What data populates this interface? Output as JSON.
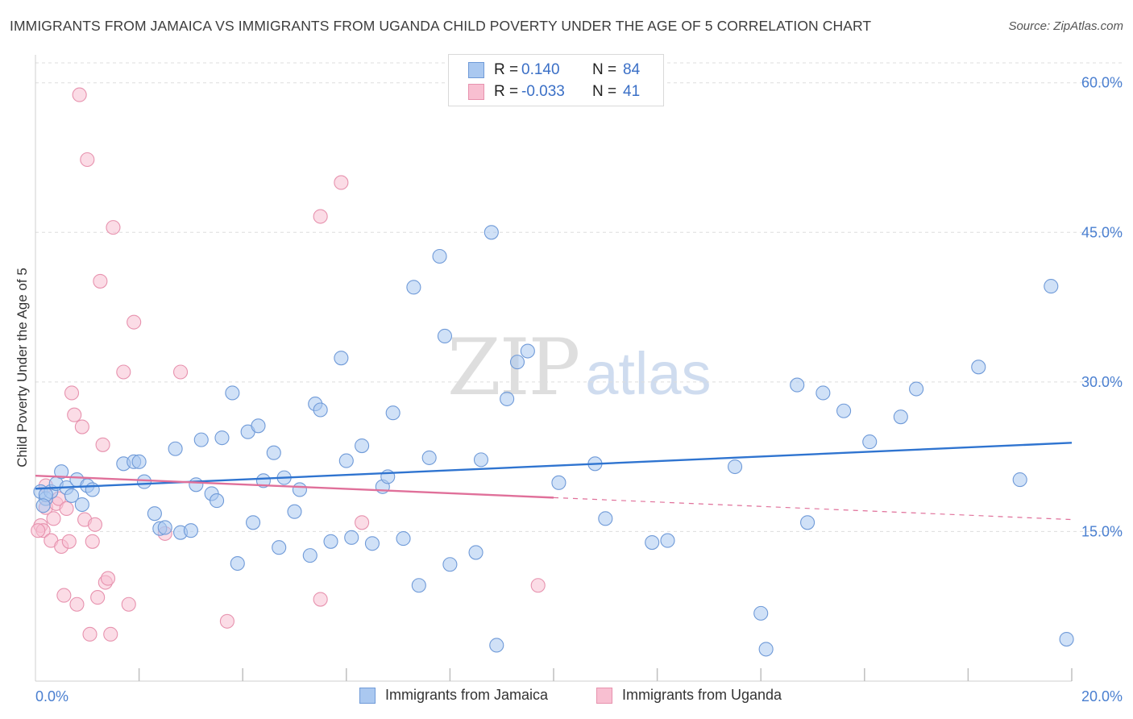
{
  "title": "IMMIGRANTS FROM JAMAICA VS IMMIGRANTS FROM UGANDA CHILD POVERTY UNDER THE AGE OF 5 CORRELATION CHART",
  "source": "Source: ZipAtlas.com",
  "watermark": {
    "zip": "ZIP",
    "atlas": "atlas"
  },
  "colors": {
    "jamaica_fill": "#aac8f0",
    "jamaica_stroke": "#6f9ad8",
    "jamaica_line": "#2f74d0",
    "uganda_fill": "#f8bfd1",
    "uganda_stroke": "#e792ae",
    "uganda_line": "#e0709a",
    "grid": "#dddddd",
    "tick_label": "#4a7fd0"
  },
  "legend": {
    "rows": [
      {
        "r_label": "R =",
        "r_value": "0.140",
        "n_label": "N =",
        "n_value": "84"
      },
      {
        "r_label": "R =",
        "r_value": "-0.033",
        "n_label": "N =",
        "n_value": "41"
      }
    ]
  },
  "bottom_legend": [
    "Immigrants from Jamaica",
    "Immigrants from Uganda"
  ],
  "chart_data": {
    "type": "scatter",
    "title": "IMMIGRANTS FROM JAMAICA VS IMMIGRANTS FROM UGANDA CHILD POVERTY UNDER THE AGE OF 5 CORRELATION CHART",
    "xlabel": "",
    "ylabel": "Child Poverty Under the Age of 5",
    "xlim": [
      0,
      20
    ],
    "ylim": [
      0,
      62
    ],
    "x_tick_labels": [
      {
        "value": 0,
        "label": "0.0%"
      },
      {
        "value": 20,
        "label": "20.0%"
      }
    ],
    "x_minor_ticks": [
      2,
      4,
      6,
      8,
      10,
      12,
      14,
      16,
      18,
      20
    ],
    "y_ticks": [
      {
        "value": 15,
        "label": "15.0%"
      },
      {
        "value": 30,
        "label": "30.0%"
      },
      {
        "value": 45,
        "label": "45.0%"
      },
      {
        "value": 60,
        "label": "60.0%"
      }
    ],
    "grid": true,
    "series": [
      {
        "name": "Immigrants from Jamaica",
        "R": 0.14,
        "N": 84,
        "trend": {
          "x0": 0,
          "y0": 19.3,
          "x1": 20,
          "y1": 23.9,
          "x_end_solid": 20
        },
        "points": [
          [
            0.1,
            19.0
          ],
          [
            0.2,
            18.3
          ],
          [
            0.3,
            19.0
          ],
          [
            0.4,
            19.8
          ],
          [
            0.5,
            21.0
          ],
          [
            0.6,
            19.4
          ],
          [
            0.7,
            18.6
          ],
          [
            0.8,
            20.2
          ],
          [
            0.9,
            17.7
          ],
          [
            1.0,
            19.6
          ],
          [
            1.1,
            19.2
          ],
          [
            1.7,
            21.8
          ],
          [
            1.9,
            22.0
          ],
          [
            2.0,
            22.0
          ],
          [
            2.1,
            20.0
          ],
          [
            2.3,
            16.8
          ],
          [
            2.4,
            15.3
          ],
          [
            2.5,
            15.4
          ],
          [
            2.7,
            23.3
          ],
          [
            2.8,
            14.9
          ],
          [
            3.0,
            15.1
          ],
          [
            3.1,
            19.7
          ],
          [
            3.2,
            24.2
          ],
          [
            3.4,
            18.8
          ],
          [
            3.5,
            18.1
          ],
          [
            3.6,
            24.4
          ],
          [
            3.8,
            28.9
          ],
          [
            3.9,
            11.8
          ],
          [
            4.1,
            25.0
          ],
          [
            4.2,
            15.9
          ],
          [
            4.3,
            25.6
          ],
          [
            4.4,
            20.1
          ],
          [
            4.6,
            22.9
          ],
          [
            4.7,
            13.4
          ],
          [
            4.8,
            20.4
          ],
          [
            5.0,
            17.0
          ],
          [
            5.1,
            19.2
          ],
          [
            5.3,
            12.6
          ],
          [
            5.4,
            27.8
          ],
          [
            5.5,
            27.2
          ],
          [
            5.7,
            14.0
          ],
          [
            5.9,
            32.4
          ],
          [
            6.0,
            22.1
          ],
          [
            6.1,
            14.4
          ],
          [
            6.3,
            23.6
          ],
          [
            6.5,
            13.8
          ],
          [
            6.7,
            19.5
          ],
          [
            6.8,
            20.5
          ],
          [
            6.9,
            26.9
          ],
          [
            7.1,
            14.3
          ],
          [
            7.3,
            39.5
          ],
          [
            7.4,
            9.6
          ],
          [
            7.6,
            22.4
          ],
          [
            7.8,
            42.6
          ],
          [
            7.9,
            34.6
          ],
          [
            8.0,
            11.7
          ],
          [
            8.5,
            12.9
          ],
          [
            8.6,
            22.2
          ],
          [
            8.8,
            45.0
          ],
          [
            8.9,
            3.6
          ],
          [
            9.1,
            28.3
          ],
          [
            9.3,
            32.0
          ],
          [
            9.5,
            33.1
          ],
          [
            10.1,
            19.9
          ],
          [
            10.8,
            21.8
          ],
          [
            11.0,
            16.3
          ],
          [
            11.9,
            13.9
          ],
          [
            12.2,
            14.1
          ],
          [
            13.5,
            21.5
          ],
          [
            14.0,
            6.8
          ],
          [
            14.1,
            3.2
          ],
          [
            14.7,
            29.7
          ],
          [
            14.9,
            15.9
          ],
          [
            15.2,
            28.9
          ],
          [
            15.6,
            27.1
          ],
          [
            16.1,
            24.0
          ],
          [
            16.7,
            26.5
          ],
          [
            17.0,
            29.3
          ],
          [
            18.2,
            31.5
          ],
          [
            19.0,
            20.2
          ],
          [
            19.6,
            39.6
          ],
          [
            19.9,
            4.2
          ],
          [
            0.2,
            18.7
          ],
          [
            0.15,
            17.6
          ]
        ]
      },
      {
        "name": "Immigrants from Uganda",
        "R": -0.033,
        "N": 41,
        "trend": {
          "x0": 0,
          "y0": 20.6,
          "x1": 20,
          "y1": 16.2,
          "x_end_solid": 10.0
        },
        "points": [
          [
            0.1,
            15.6
          ],
          [
            0.15,
            15.1
          ],
          [
            0.2,
            17.4
          ],
          [
            0.3,
            14.1
          ],
          [
            0.35,
            16.3
          ],
          [
            0.4,
            17.8
          ],
          [
            0.45,
            18.3
          ],
          [
            0.5,
            13.5
          ],
          [
            0.55,
            8.6
          ],
          [
            0.6,
            17.3
          ],
          [
            0.65,
            14.0
          ],
          [
            0.7,
            28.9
          ],
          [
            0.75,
            26.7
          ],
          [
            0.8,
            7.7
          ],
          [
            0.85,
            58.8
          ],
          [
            0.9,
            25.5
          ],
          [
            0.95,
            16.2
          ],
          [
            1.0,
            52.3
          ],
          [
            1.05,
            4.7
          ],
          [
            1.1,
            14.0
          ],
          [
            1.15,
            15.7
          ],
          [
            1.2,
            8.4
          ],
          [
            1.25,
            40.1
          ],
          [
            1.3,
            23.7
          ],
          [
            1.35,
            9.9
          ],
          [
            1.4,
            10.3
          ],
          [
            1.45,
            4.7
          ],
          [
            1.5,
            45.5
          ],
          [
            1.7,
            31.0
          ],
          [
            1.8,
            7.7
          ],
          [
            1.9,
            36.0
          ],
          [
            2.5,
            14.8
          ],
          [
            2.8,
            31.0
          ],
          [
            3.7,
            6.0
          ],
          [
            5.5,
            46.6
          ],
          [
            5.5,
            8.2
          ],
          [
            5.9,
            50.0
          ],
          [
            6.3,
            15.9
          ],
          [
            9.7,
            9.6
          ],
          [
            0.2,
            19.6
          ],
          [
            0.05,
            15.1
          ]
        ]
      }
    ]
  }
}
